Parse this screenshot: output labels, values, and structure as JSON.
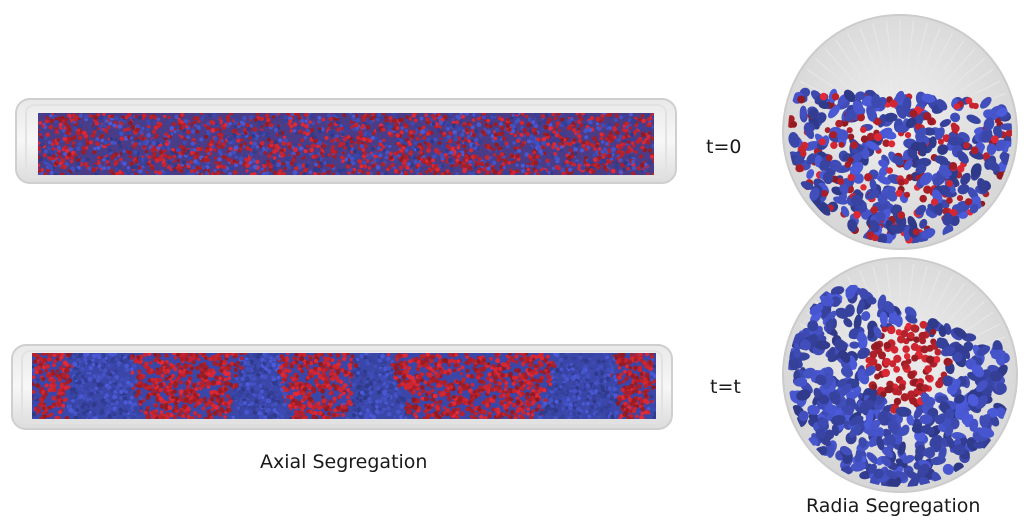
{
  "labels": {
    "t0": "t=0",
    "tt": "t=t",
    "axial": "Axial Segregation",
    "radial": "Radia Segregation"
  },
  "colors": {
    "red_particle": "#b0202a",
    "blue_particle": "#3a46a8",
    "tube_glass": "#d8d8d8",
    "background": "#ffffff"
  },
  "states": {
    "initial": {
      "time": "t=0",
      "pattern": "mixed"
    },
    "final": {
      "time": "t=t",
      "pattern": "segregated",
      "axial_bands": [
        "red",
        "blue",
        "red",
        "blue",
        "red",
        "blue",
        "red",
        "blue",
        "red"
      ],
      "radial_core": "red",
      "radial_shell": "blue"
    }
  }
}
